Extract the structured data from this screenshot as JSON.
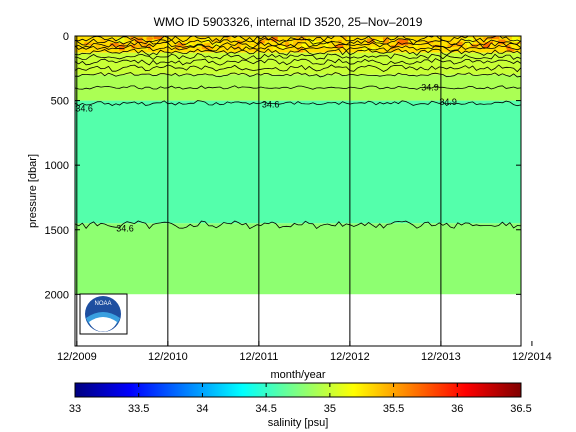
{
  "chart_data": {
    "type": "heatmap",
    "title": "WMO ID 5903326, internal ID 3520, 25–Nov–2019",
    "xlabel": "month/year",
    "ylabel": "pressure [dbar]",
    "xlim": [
      "2009-12",
      "2014-12"
    ],
    "ylim": [
      2400,
      0
    ],
    "y_reversed": true,
    "x_ticks": [
      "12/2009",
      "12/2010",
      "12/2011",
      "12/2012",
      "12/2013",
      "12/2014"
    ],
    "y_ticks": [
      0,
      500,
      1000,
      1500,
      2000
    ],
    "colorbar": {
      "label": "salinity [psu]",
      "range": [
        33,
        36.5
      ],
      "ticks": [
        33,
        33.5,
        34,
        34.5,
        35,
        35.5,
        36,
        36.5
      ],
      "colormap": "jet",
      "colors": [
        "#00008f",
        "#0000ff",
        "#0080ff",
        "#00ffff",
        "#80ff80",
        "#ffff00",
        "#ff8000",
        "#ff0000",
        "#800000"
      ]
    },
    "contour_labels": [
      {
        "text": "34.6",
        "year": 2010.0,
        "pressure": 560
      },
      {
        "text": "34.6",
        "year": 2012.05,
        "pressure": 530
      },
      {
        "text": "34.6",
        "year": 2010.45,
        "pressure": 1490
      },
      {
        "text": "34.9",
        "year": 2013.8,
        "pressure": 400
      },
      {
        "text": "34.9",
        "year": 2014.0,
        "pressure": 510
      }
    ],
    "bands": [
      {
        "pressure_top": 0,
        "pressure_bottom": 130,
        "salinity": 35.3
      },
      {
        "pressure_top": 130,
        "pressure_bottom": 300,
        "salinity": 35.0
      },
      {
        "pressure_top": 300,
        "pressure_bottom": 500,
        "salinity": 34.9
      },
      {
        "pressure_top": 500,
        "pressure_bottom": 1450,
        "salinity": 34.6
      },
      {
        "pressure_top": 1450,
        "pressure_bottom": 2000,
        "salinity": 34.8
      }
    ],
    "grid": false,
    "vertical_year_lines": true
  },
  "logo": {
    "text": "NOAA"
  }
}
